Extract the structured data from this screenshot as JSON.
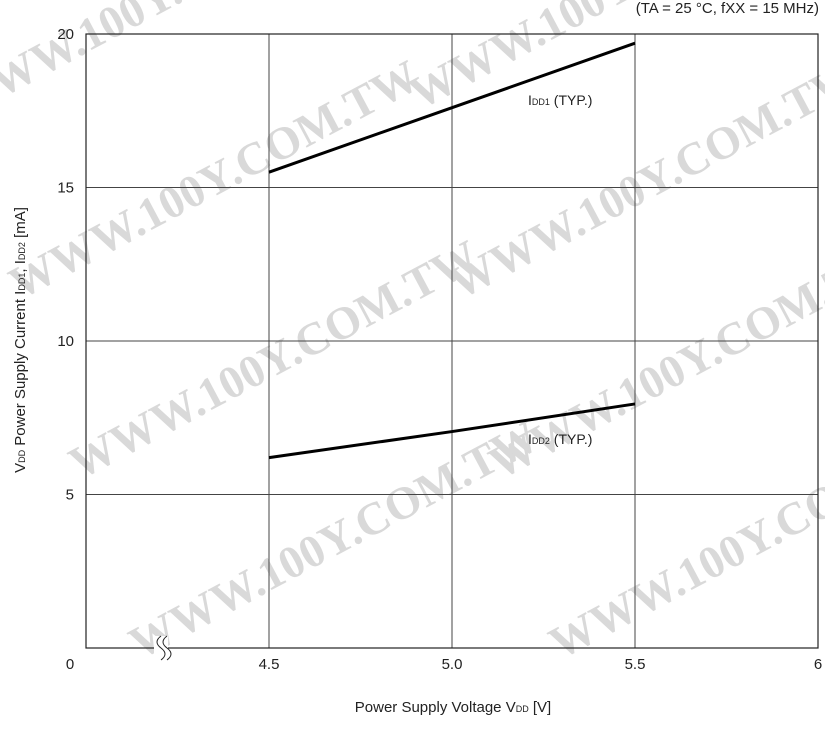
{
  "conditions": {
    "text": "(TA = 25 °C, fXX = 15 MHz)"
  },
  "watermark": {
    "text": "WWW.100Y.COM.TW",
    "color": "#d9d9d9"
  },
  "chart_data": {
    "type": "line",
    "title": "",
    "xlabel": {
      "main": "Power Supply Voltage  V",
      "sub": "DD",
      "unit": " [V]"
    },
    "ylabel": {
      "main": "V",
      "sub1": "DD",
      "mid": " Power Supply Current  I",
      "sub2": "DD1",
      "mid2": ", I",
      "sub3": "DD2",
      "unit": " [mA]"
    },
    "xlim": [
      0,
      6
    ],
    "ylim": [
      0,
      20
    ],
    "axis_break": "between 0 and 4.5",
    "x_ticks": [
      {
        "value": 0,
        "label": "0"
      },
      {
        "value": 4.5,
        "label": "4.5"
      },
      {
        "value": 5.0,
        "label": "5.0"
      },
      {
        "value": 5.5,
        "label": "5.5"
      },
      {
        "value": 6,
        "label": "6"
      }
    ],
    "y_ticks": [
      {
        "value": 5,
        "label": "5"
      },
      {
        "value": 10,
        "label": "10"
      },
      {
        "value": 15,
        "label": "15"
      },
      {
        "value": 20,
        "label": "20"
      }
    ],
    "grid": true,
    "series": [
      {
        "name": "IDD1 (TYP.)",
        "label_main": "I",
        "label_sub": "DD1",
        "label_rest": " (TYP.)",
        "x": [
          4.5,
          5.0,
          5.5
        ],
        "y": [
          15.5,
          17.6,
          19.7
        ],
        "color": "#000000"
      },
      {
        "name": "IDD2 (TYP.)",
        "label_main": "I",
        "label_sub": "DD2",
        "label_rest": " (TYP.)",
        "x": [
          4.5,
          5.0,
          5.5
        ],
        "y": [
          6.2,
          7.05,
          7.95
        ],
        "color": "#000000"
      }
    ]
  }
}
